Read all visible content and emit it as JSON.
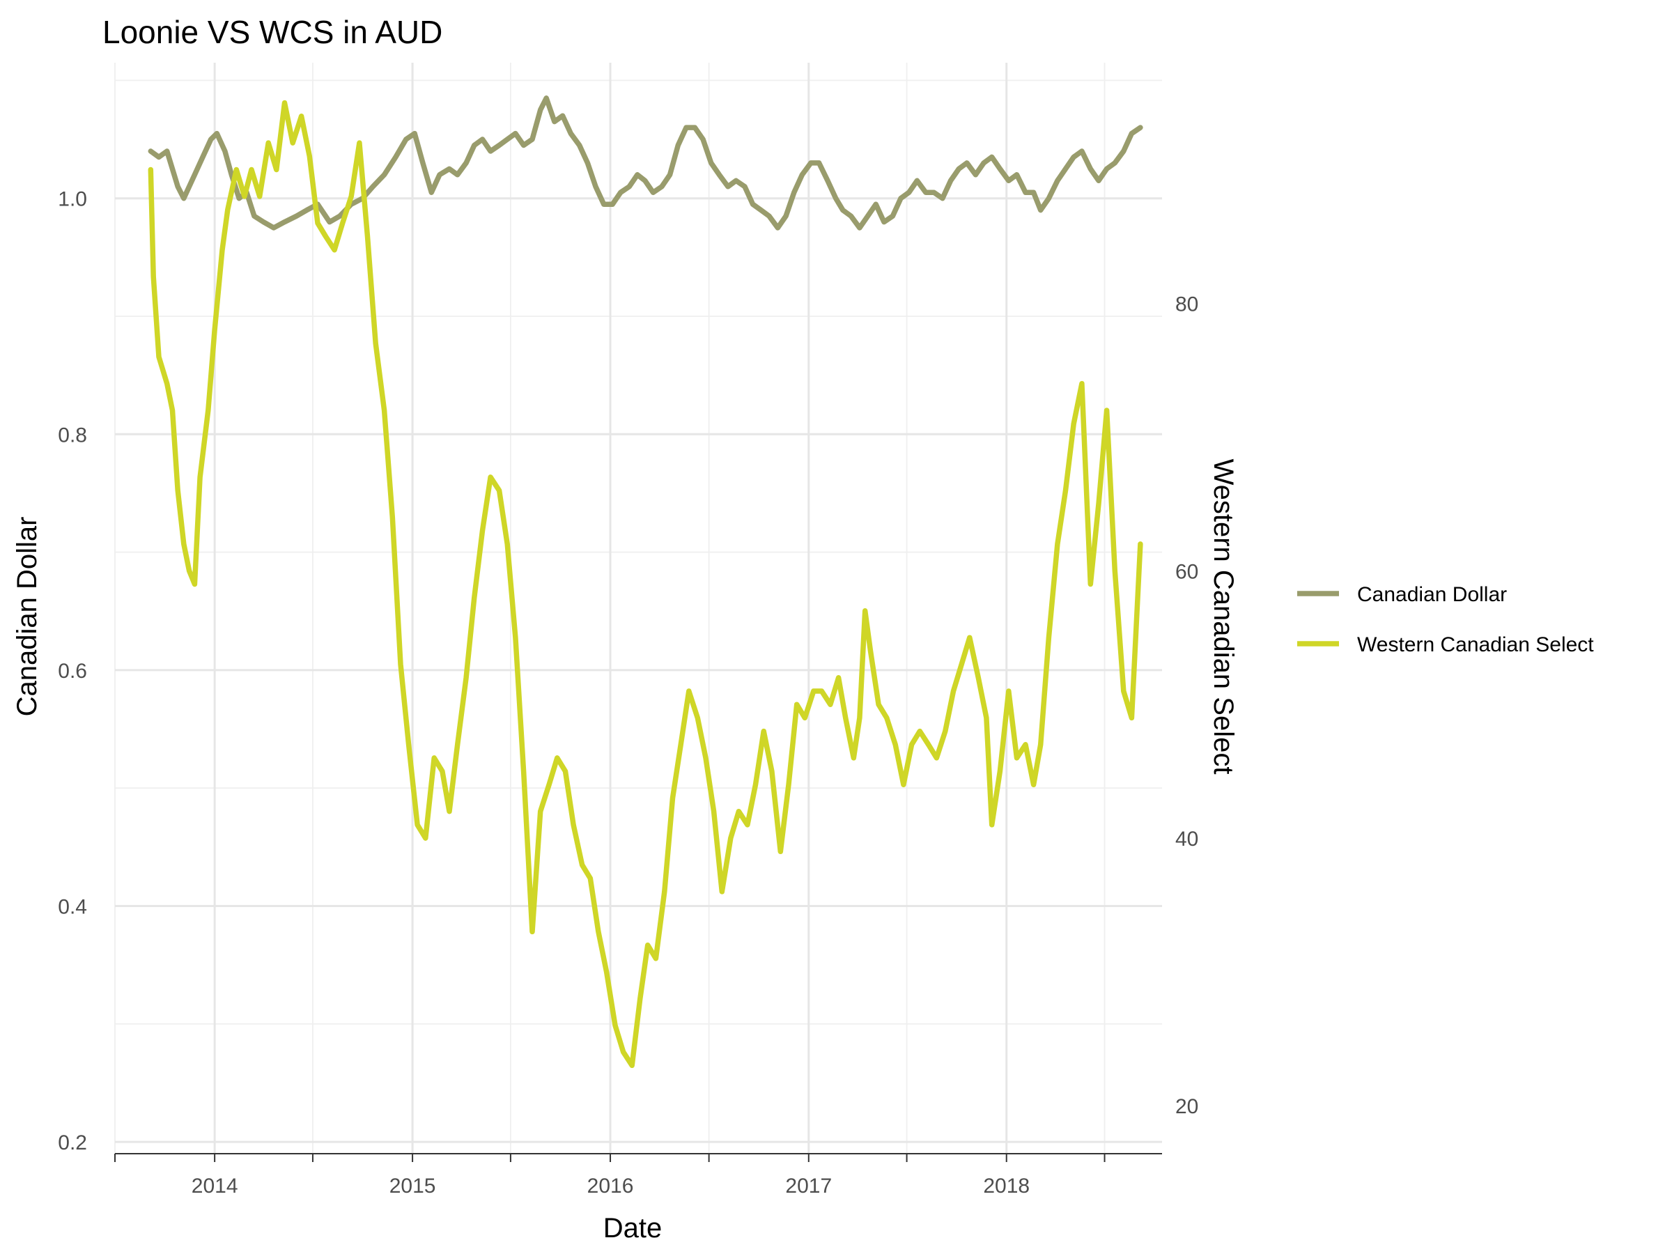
{
  "chart_data": {
    "type": "line",
    "title": "Loonie VS WCS in AUD",
    "xlabel": "Date",
    "ylabel": "Canadian Dollar",
    "y2label": "Western Canadian Select",
    "xlim": [
      "2013-07-01",
      "2018-10-15"
    ],
    "ylim": [
      0.19,
      1.115
    ],
    "y2lim": [
      16.4,
      98.0
    ],
    "x_ticks": [
      "2014",
      "2015",
      "2016",
      "2017",
      "2018"
    ],
    "y_ticks": [
      "0.2",
      "0.4",
      "0.6",
      "0.8",
      "1.0"
    ],
    "y2_ticks": [
      "20",
      "40",
      "60",
      "80"
    ],
    "grid": true,
    "legend_position": "right",
    "series": [
      {
        "name": "Canadian Dollar",
        "axis": "left",
        "color": "#999c6c",
        "points": [
          [
            "2013-09-05",
            1.04
          ],
          [
            "2013-09-20",
            1.035
          ],
          [
            "2013-10-05",
            1.04
          ],
          [
            "2013-10-25",
            1.01
          ],
          [
            "2013-11-05",
            1.0
          ],
          [
            "2013-11-25",
            1.02
          ],
          [
            "2013-12-10",
            1.035
          ],
          [
            "2013-12-25",
            1.05
          ],
          [
            "2014-01-05",
            1.055
          ],
          [
            "2014-01-20",
            1.04
          ],
          [
            "2014-02-01",
            1.02
          ],
          [
            "2014-02-15",
            1.0
          ],
          [
            "2014-03-01",
            1.005
          ],
          [
            "2014-03-15",
            0.985
          ],
          [
            "2014-04-01",
            0.98
          ],
          [
            "2014-04-20",
            0.975
          ],
          [
            "2014-05-10",
            0.98
          ],
          [
            "2014-06-01",
            0.985
          ],
          [
            "2014-06-20",
            0.99
          ],
          [
            "2014-07-10",
            0.995
          ],
          [
            "2014-08-01",
            0.98
          ],
          [
            "2014-08-20",
            0.985
          ],
          [
            "2014-09-10",
            0.995
          ],
          [
            "2014-10-01",
            1.0
          ],
          [
            "2014-10-20",
            1.01
          ],
          [
            "2014-11-10",
            1.02
          ],
          [
            "2014-12-01",
            1.035
          ],
          [
            "2014-12-20",
            1.05
          ],
          [
            "2015-01-05",
            1.055
          ],
          [
            "2015-01-20",
            1.03
          ],
          [
            "2015-02-05",
            1.005
          ],
          [
            "2015-02-20",
            1.02
          ],
          [
            "2015-03-10",
            1.025
          ],
          [
            "2015-03-25",
            1.02
          ],
          [
            "2015-04-10",
            1.03
          ],
          [
            "2015-04-25",
            1.045
          ],
          [
            "2015-05-10",
            1.05
          ],
          [
            "2015-05-25",
            1.04
          ],
          [
            "2015-06-10",
            1.045
          ],
          [
            "2015-06-25",
            1.05
          ],
          [
            "2015-07-10",
            1.055
          ],
          [
            "2015-07-25",
            1.045
          ],
          [
            "2015-08-10",
            1.05
          ],
          [
            "2015-08-25",
            1.075
          ],
          [
            "2015-09-05",
            1.085
          ],
          [
            "2015-09-20",
            1.065
          ],
          [
            "2015-10-05",
            1.07
          ],
          [
            "2015-10-20",
            1.055
          ],
          [
            "2015-11-05",
            1.045
          ],
          [
            "2015-11-20",
            1.03
          ],
          [
            "2015-12-05",
            1.01
          ],
          [
            "2015-12-20",
            0.995
          ],
          [
            "2016-01-05",
            0.995
          ],
          [
            "2016-01-20",
            1.005
          ],
          [
            "2016-02-05",
            1.01
          ],
          [
            "2016-02-20",
            1.02
          ],
          [
            "2016-03-05",
            1.015
          ],
          [
            "2016-03-20",
            1.005
          ],
          [
            "2016-04-05",
            1.01
          ],
          [
            "2016-04-20",
            1.02
          ],
          [
            "2016-05-05",
            1.045
          ],
          [
            "2016-05-20",
            1.06
          ],
          [
            "2016-06-05",
            1.06
          ],
          [
            "2016-06-20",
            1.05
          ],
          [
            "2016-07-05",
            1.03
          ],
          [
            "2016-07-20",
            1.02
          ],
          [
            "2016-08-05",
            1.01
          ],
          [
            "2016-08-20",
            1.015
          ],
          [
            "2016-09-05",
            1.01
          ],
          [
            "2016-09-20",
            0.995
          ],
          [
            "2016-10-05",
            0.99
          ],
          [
            "2016-10-20",
            0.985
          ],
          [
            "2016-11-05",
            0.975
          ],
          [
            "2016-11-20",
            0.985
          ],
          [
            "2016-12-05",
            1.005
          ],
          [
            "2016-12-20",
            1.02
          ],
          [
            "2017-01-05",
            1.03
          ],
          [
            "2017-01-20",
            1.03
          ],
          [
            "2017-02-05",
            1.015
          ],
          [
            "2017-02-20",
            1.0
          ],
          [
            "2017-03-05",
            0.99
          ],
          [
            "2017-03-20",
            0.985
          ],
          [
            "2017-04-05",
            0.975
          ],
          [
            "2017-04-20",
            0.985
          ],
          [
            "2017-05-05",
            0.995
          ],
          [
            "2017-05-20",
            0.98
          ],
          [
            "2017-06-05",
            0.985
          ],
          [
            "2017-06-20",
            1.0
          ],
          [
            "2017-07-05",
            1.005
          ],
          [
            "2017-07-20",
            1.015
          ],
          [
            "2017-08-05",
            1.005
          ],
          [
            "2017-08-20",
            1.005
          ],
          [
            "2017-09-05",
            1.0
          ],
          [
            "2017-09-20",
            1.015
          ],
          [
            "2017-10-05",
            1.025
          ],
          [
            "2017-10-20",
            1.03
          ],
          [
            "2017-11-05",
            1.02
          ],
          [
            "2017-11-20",
            1.03
          ],
          [
            "2017-12-05",
            1.035
          ],
          [
            "2017-12-20",
            1.025
          ],
          [
            "2018-01-05",
            1.015
          ],
          [
            "2018-01-20",
            1.02
          ],
          [
            "2018-02-05",
            1.005
          ],
          [
            "2018-02-20",
            1.005
          ],
          [
            "2018-03-05",
            0.99
          ],
          [
            "2018-03-20",
            1.0
          ],
          [
            "2018-04-05",
            1.015
          ],
          [
            "2018-04-20",
            1.025
          ],
          [
            "2018-05-05",
            1.035
          ],
          [
            "2018-05-20",
            1.04
          ],
          [
            "2018-06-05",
            1.025
          ],
          [
            "2018-06-20",
            1.015
          ],
          [
            "2018-07-05",
            1.025
          ],
          [
            "2018-07-20",
            1.03
          ],
          [
            "2018-08-05",
            1.04
          ],
          [
            "2018-08-20",
            1.055
          ],
          [
            "2018-09-05",
            1.06
          ]
        ]
      },
      {
        "name": "Western Canadian Select",
        "axis": "right",
        "color": "#cfd627",
        "points": [
          [
            "2013-09-05",
            90
          ],
          [
            "2013-09-10",
            82
          ],
          [
            "2013-09-20",
            76
          ],
          [
            "2013-10-05",
            74
          ],
          [
            "2013-10-15",
            72
          ],
          [
            "2013-10-25",
            66
          ],
          [
            "2013-11-05",
            62
          ],
          [
            "2013-11-15",
            60
          ],
          [
            "2013-11-25",
            59
          ],
          [
            "2013-12-05",
            67
          ],
          [
            "2013-12-20",
            72
          ],
          [
            "2014-01-01",
            78
          ],
          [
            "2014-01-15",
            84
          ],
          [
            "2014-01-25",
            87
          ],
          [
            "2014-02-10",
            90
          ],
          [
            "2014-02-25",
            88
          ],
          [
            "2014-03-10",
            90
          ],
          [
            "2014-03-25",
            88
          ],
          [
            "2014-04-10",
            92
          ],
          [
            "2014-04-25",
            90
          ],
          [
            "2014-05-10",
            95
          ],
          [
            "2014-05-25",
            92
          ],
          [
            "2014-06-10",
            94
          ],
          [
            "2014-06-25",
            91
          ],
          [
            "2014-07-10",
            86
          ],
          [
            "2014-07-25",
            85
          ],
          [
            "2014-08-10",
            84
          ],
          [
            "2014-08-25",
            86
          ],
          [
            "2014-09-10",
            88
          ],
          [
            "2014-09-25",
            92
          ],
          [
            "2014-10-10",
            85
          ],
          [
            "2014-10-25",
            77
          ],
          [
            "2014-11-10",
            72
          ],
          [
            "2014-11-25",
            64
          ],
          [
            "2014-12-10",
            53
          ],
          [
            "2014-12-25",
            47
          ],
          [
            "2015-01-10",
            41
          ],
          [
            "2015-01-25",
            40
          ],
          [
            "2015-02-10",
            46
          ],
          [
            "2015-02-25",
            45
          ],
          [
            "2015-03-10",
            42
          ],
          [
            "2015-03-25",
            47
          ],
          [
            "2015-04-10",
            52
          ],
          [
            "2015-04-25",
            58
          ],
          [
            "2015-05-10",
            63
          ],
          [
            "2015-05-25",
            67
          ],
          [
            "2015-06-10",
            66
          ],
          [
            "2015-06-25",
            62
          ],
          [
            "2015-07-10",
            55
          ],
          [
            "2015-07-25",
            45
          ],
          [
            "2015-08-10",
            33
          ],
          [
            "2015-08-25",
            42
          ],
          [
            "2015-09-10",
            44
          ],
          [
            "2015-09-25",
            46
          ],
          [
            "2015-10-10",
            45
          ],
          [
            "2015-10-25",
            41
          ],
          [
            "2015-11-10",
            38
          ],
          [
            "2015-11-25",
            37
          ],
          [
            "2015-12-10",
            33
          ],
          [
            "2015-12-25",
            30
          ],
          [
            "2016-01-10",
            26
          ],
          [
            "2016-01-25",
            24
          ],
          [
            "2016-02-10",
            23
          ],
          [
            "2016-02-25",
            28
          ],
          [
            "2016-03-10",
            32
          ],
          [
            "2016-03-25",
            31
          ],
          [
            "2016-04-10",
            36
          ],
          [
            "2016-04-25",
            43
          ],
          [
            "2016-05-10",
            47
          ],
          [
            "2016-05-25",
            51
          ],
          [
            "2016-06-10",
            49
          ],
          [
            "2016-06-25",
            46
          ],
          [
            "2016-07-10",
            42
          ],
          [
            "2016-07-25",
            36
          ],
          [
            "2016-08-10",
            40
          ],
          [
            "2016-08-25",
            42
          ],
          [
            "2016-09-10",
            41
          ],
          [
            "2016-09-25",
            44
          ],
          [
            "2016-10-10",
            48
          ],
          [
            "2016-10-25",
            45
          ],
          [
            "2016-11-10",
            39
          ],
          [
            "2016-11-25",
            44
          ],
          [
            "2016-12-10",
            50
          ],
          [
            "2016-12-25",
            49
          ],
          [
            "2017-01-10",
            51
          ],
          [
            "2017-01-25",
            51
          ],
          [
            "2017-02-10",
            50
          ],
          [
            "2017-02-25",
            52
          ],
          [
            "2017-03-10",
            49
          ],
          [
            "2017-03-25",
            46
          ],
          [
            "2017-04-05",
            49
          ],
          [
            "2017-04-15",
            57
          ],
          [
            "2017-04-25",
            54
          ],
          [
            "2017-05-10",
            50
          ],
          [
            "2017-05-25",
            49
          ],
          [
            "2017-06-10",
            47
          ],
          [
            "2017-06-25",
            44
          ],
          [
            "2017-07-10",
            47
          ],
          [
            "2017-07-25",
            48
          ],
          [
            "2017-08-10",
            47
          ],
          [
            "2017-08-25",
            46
          ],
          [
            "2017-09-10",
            48
          ],
          [
            "2017-09-25",
            51
          ],
          [
            "2017-10-10",
            53
          ],
          [
            "2017-10-25",
            55
          ],
          [
            "2017-11-10",
            52
          ],
          [
            "2017-11-25",
            49
          ],
          [
            "2017-12-05",
            41
          ],
          [
            "2017-12-20",
            45
          ],
          [
            "2018-01-05",
            51
          ],
          [
            "2018-01-20",
            46
          ],
          [
            "2018-02-05",
            47
          ],
          [
            "2018-02-20",
            44
          ],
          [
            "2018-03-05",
            47
          ],
          [
            "2018-03-20",
            55
          ],
          [
            "2018-04-05",
            62
          ],
          [
            "2018-04-20",
            66
          ],
          [
            "2018-05-05",
            71
          ],
          [
            "2018-05-20",
            74
          ],
          [
            "2018-06-05",
            59
          ],
          [
            "2018-06-20",
            65
          ],
          [
            "2018-07-05",
            72
          ],
          [
            "2018-07-20",
            60
          ],
          [
            "2018-08-05",
            51
          ],
          [
            "2018-08-20",
            49
          ],
          [
            "2018-09-05",
            62
          ]
        ]
      }
    ]
  }
}
